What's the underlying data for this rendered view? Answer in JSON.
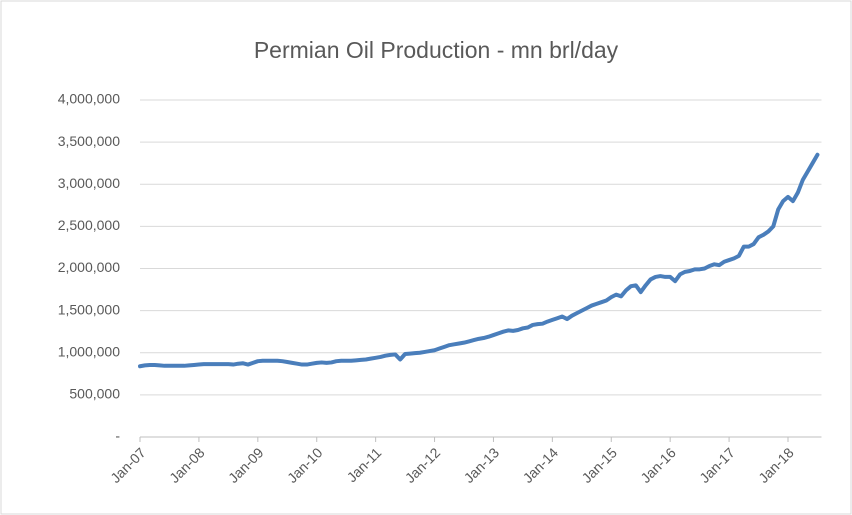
{
  "chart_data": {
    "type": "line",
    "title": "Permian Oil Production - mn brl/day",
    "categories": [
      "Jan-07",
      null,
      null,
      null,
      null,
      null,
      null,
      null,
      null,
      null,
      null,
      null,
      "Jan-08",
      null,
      null,
      null,
      null,
      null,
      null,
      null,
      null,
      null,
      null,
      null,
      "Jan-09",
      null,
      null,
      null,
      null,
      null,
      null,
      null,
      null,
      null,
      null,
      null,
      "Jan-10",
      null,
      null,
      null,
      null,
      null,
      null,
      null,
      null,
      null,
      null,
      null,
      "Jan-11",
      null,
      null,
      null,
      null,
      null,
      null,
      null,
      null,
      null,
      null,
      null,
      "Jan-12",
      null,
      null,
      null,
      null,
      null,
      null,
      null,
      null,
      null,
      null,
      null,
      "Jan-13",
      null,
      null,
      null,
      null,
      null,
      null,
      null,
      null,
      null,
      null,
      null,
      "Jan-14",
      null,
      null,
      null,
      null,
      null,
      null,
      null,
      null,
      null,
      null,
      null,
      "Jan-15",
      null,
      null,
      null,
      null,
      null,
      null,
      null,
      null,
      null,
      null,
      null,
      "Jan-16",
      null,
      null,
      null,
      null,
      null,
      null,
      null,
      null,
      null,
      null,
      null,
      "Jan-17",
      null,
      null,
      null,
      null,
      null,
      null,
      null,
      null,
      null,
      null,
      null,
      "Jan-18",
      null,
      null,
      null,
      null,
      null,
      null
    ],
    "series": [
      {
        "color": "#4a7ebb",
        "values": [
          840000,
          850000,
          855000,
          855000,
          850000,
          845000,
          845000,
          845000,
          845000,
          845000,
          850000,
          855000,
          860000,
          865000,
          865000,
          865000,
          865000,
          865000,
          865000,
          860000,
          870000,
          875000,
          860000,
          880000,
          900000,
          905000,
          905000,
          905000,
          905000,
          900000,
          890000,
          880000,
          870000,
          860000,
          860000,
          870000,
          880000,
          885000,
          880000,
          885000,
          900000,
          905000,
          905000,
          905000,
          910000,
          915000,
          920000,
          930000,
          940000,
          950000,
          965000,
          975000,
          980000,
          920000,
          985000,
          990000,
          995000,
          1000000,
          1010000,
          1020000,
          1030000,
          1050000,
          1070000,
          1090000,
          1100000,
          1110000,
          1120000,
          1135000,
          1150000,
          1165000,
          1175000,
          1190000,
          1210000,
          1230000,
          1250000,
          1265000,
          1260000,
          1270000,
          1290000,
          1300000,
          1330000,
          1340000,
          1345000,
          1370000,
          1390000,
          1410000,
          1430000,
          1400000,
          1440000,
          1470000,
          1500000,
          1530000,
          1560000,
          1580000,
          1600000,
          1620000,
          1660000,
          1690000,
          1670000,
          1740000,
          1790000,
          1800000,
          1720000,
          1800000,
          1870000,
          1900000,
          1910000,
          1900000,
          1900000,
          1850000,
          1930000,
          1960000,
          1970000,
          1990000,
          1990000,
          2000000,
          2030000,
          2050000,
          2040000,
          2080000,
          2100000,
          2120000,
          2150000,
          2260000,
          2260000,
          2290000,
          2370000,
          2400000,
          2440000,
          2500000,
          2700000,
          2800000,
          2850000,
          2800000,
          2900000,
          3050000,
          3150000,
          3250000,
          3350000
        ]
      }
    ],
    "ylim": [
      0,
      4000000
    ],
    "yticks": [
      {
        "value": 0,
        "label": "-"
      },
      {
        "value": 500000,
        "label": "500,000"
      },
      {
        "value": 1000000,
        "label": "1,000,000"
      },
      {
        "value": 1500000,
        "label": "1,500,000"
      },
      {
        "value": 2000000,
        "label": "2,000,000"
      },
      {
        "value": 2500000,
        "label": "2,500,000"
      },
      {
        "value": 3000000,
        "label": "3,000,000"
      },
      {
        "value": 3500000,
        "label": "3,500,000"
      },
      {
        "value": 4000000,
        "label": "4,000,000"
      }
    ],
    "grid": true
  }
}
